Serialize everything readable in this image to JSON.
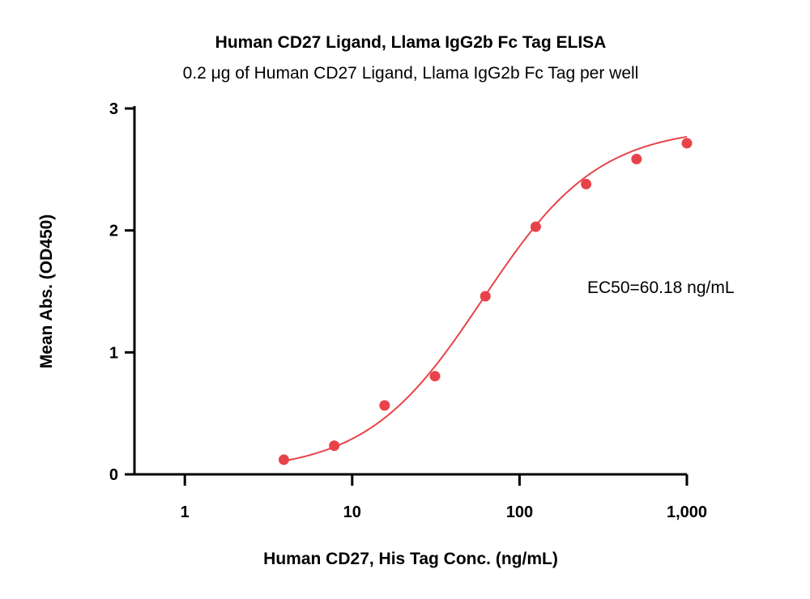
{
  "chart_data": {
    "type": "scatter",
    "title": "Human CD27 Ligand, Llama IgG2b Fc Tag ELISA",
    "subtitle": "0.2 μg of Human CD27 Ligand, Llama IgG2b Fc Tag per well",
    "xlabel": "Human CD27, His Tag Conc. (ng/mL)",
    "ylabel": "Mean Abs. (OD450)",
    "x_scale": "log10",
    "xlim": [
      0.5,
      1000
    ],
    "ylim": [
      0,
      3
    ],
    "x_ticks": [
      {
        "value": 1,
        "label": "1"
      },
      {
        "value": 10,
        "label": "10"
      },
      {
        "value": 100,
        "label": "100"
      },
      {
        "value": 1000,
        "label": "1,000"
      }
    ],
    "y_ticks": [
      {
        "value": 0,
        "label": "0"
      },
      {
        "value": 1,
        "label": "1"
      },
      {
        "value": 2,
        "label": "2"
      },
      {
        "value": 3,
        "label": "3"
      }
    ],
    "grid": false,
    "legend": "none",
    "series": [
      {
        "color": "#e8434a",
        "x": [
          3.906,
          7.813,
          15.625,
          31.25,
          62.5,
          125,
          250,
          500,
          1000
        ],
        "y": [
          0.12,
          0.235,
          0.565,
          0.805,
          1.46,
          2.03,
          2.38,
          2.585,
          2.715
        ]
      }
    ],
    "fit_curve": {
      "model": "4PL",
      "bottom": 0.02,
      "top": 2.85,
      "ec50": 60.18,
      "hill": 1.25,
      "color": "#e8434a"
    },
    "annotations": [
      {
        "text": "EC50=60.18 ng/mL"
      }
    ]
  }
}
